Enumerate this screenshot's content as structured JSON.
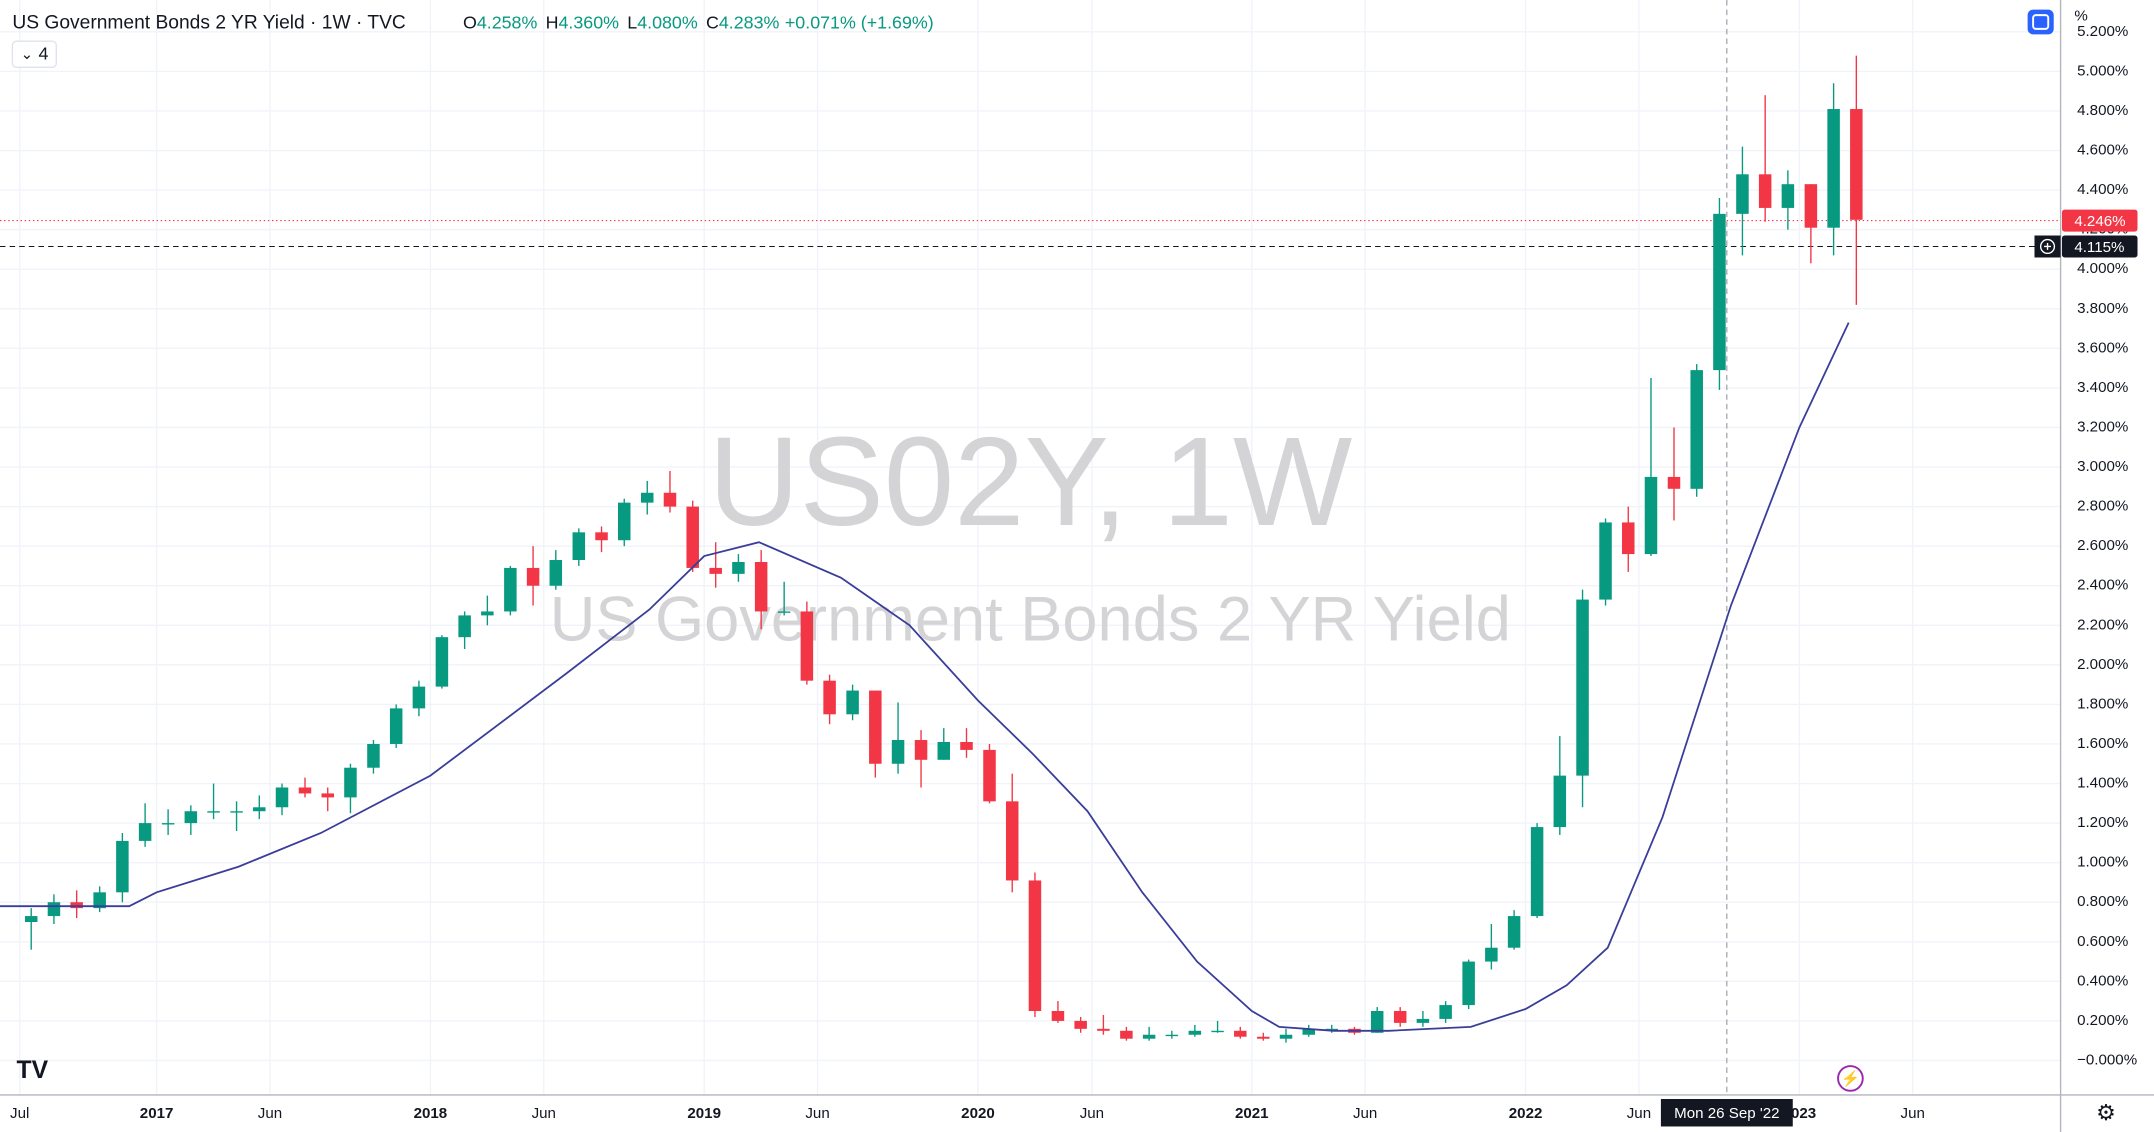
{
  "chart_data": {
    "type": "candlestick",
    "title": "US Government Bonds 2 YR Yield · 1W · TVC",
    "ohlc": [
      {
        "key": "O",
        "value": "4.258%"
      },
      {
        "key": "H",
        "value": "4.360%"
      },
      {
        "key": "L",
        "value": "4.080%"
      },
      {
        "key": "C",
        "value": "4.283%"
      }
    ],
    "change": "+0.071% (+1.69%)",
    "indicator_label": "4",
    "unit": "%",
    "watermark": "US02Y, 1W",
    "watermark_subtitle": "US Government Bonds 2 YR Yield",
    "up_color": "#089981",
    "down_color": "#f23645",
    "ma_color": "#3a3d99",
    "xlim": [
      2016.428,
      2023.954
    ],
    "ylim": [
      -0.174,
      5.361
    ],
    "xticks": [
      {
        "value": 2016.5,
        "label": "Jul"
      },
      2017,
      {
        "value": 2017.414,
        "label": "Jun"
      },
      2018,
      {
        "value": 2018.414,
        "label": "Jun"
      },
      2019,
      {
        "value": 2019.414,
        "label": "Jun"
      },
      2020,
      {
        "value": 2020.416,
        "label": "Jun"
      },
      2021,
      {
        "value": 2021.414,
        "label": "Jun"
      },
      2022,
      {
        "value": 2022.414,
        "label": "Jun"
      },
      2023,
      {
        "value": 2023.414,
        "label": "Jun"
      }
    ],
    "yticks": [
      {
        "value": 0,
        "label": "−0.000%"
      },
      {
        "value": 0.2,
        "label": "0.200%"
      },
      {
        "value": 0.4,
        "label": "0.400%"
      },
      {
        "value": 0.6,
        "label": "0.600%"
      },
      {
        "value": 0.8,
        "label": "0.800%"
      },
      {
        "value": 1.0,
        "label": "1.000%"
      },
      {
        "value": 1.2,
        "label": "1.200%"
      },
      {
        "value": 1.4,
        "label": "1.400%"
      },
      {
        "value": 1.6,
        "label": "1.600%"
      },
      {
        "value": 1.8,
        "label": "1.800%"
      },
      {
        "value": 2.0,
        "label": "2.000%"
      },
      {
        "value": 2.2,
        "label": "2.200%"
      },
      {
        "value": 2.4,
        "label": "2.400%"
      },
      {
        "value": 2.6,
        "label": "2.600%"
      },
      {
        "value": 2.8,
        "label": "2.800%"
      },
      {
        "value": 3.0,
        "label": "3.000%"
      },
      {
        "value": 3.2,
        "label": "3.200%"
      },
      {
        "value": 3.4,
        "label": "3.400%"
      },
      {
        "value": 3.6,
        "label": "3.600%"
      },
      {
        "value": 3.8,
        "label": "3.800%"
      },
      {
        "value": 4.0,
        "label": "4.000%"
      },
      {
        "value": 4.2,
        "label": "4.200%"
      },
      {
        "value": 4.4,
        "label": "4.400%"
      },
      {
        "value": 4.6,
        "label": "4.600%"
      },
      {
        "value": 4.8,
        "label": "4.800%"
      },
      {
        "value": 5.0,
        "label": "5.000%"
      },
      {
        "value": 5.2,
        "label": "5.200%"
      }
    ],
    "grid": true,
    "x": [
      2016.542,
      2016.625,
      2016.708,
      2016.792,
      2016.875,
      2016.958,
      2017.042,
      2017.125,
      2017.208,
      2017.292,
      2017.375,
      2017.458,
      2017.542,
      2017.625,
      2017.708,
      2017.792,
      2017.875,
      2017.958,
      2018.042,
      2018.125,
      2018.208,
      2018.292,
      2018.375,
      2018.458,
      2018.542,
      2018.625,
      2018.708,
      2018.792,
      2018.875,
      2018.958,
      2019.042,
      2019.125,
      2019.208,
      2019.292,
      2019.375,
      2019.458,
      2019.542,
      2019.625,
      2019.708,
      2019.792,
      2019.875,
      2019.958,
      2020.042,
      2020.125,
      2020.208,
      2020.292,
      2020.375,
      2020.458,
      2020.542,
      2020.625,
      2020.708,
      2020.792,
      2020.875,
      2020.958,
      2021.042,
      2021.125,
      2021.208,
      2021.292,
      2021.375,
      2021.458,
      2021.542,
      2021.625,
      2021.708,
      2021.792,
      2021.875,
      2021.958,
      2022.042,
      2022.125,
      2022.208,
      2022.292,
      2022.375,
      2022.458,
      2022.542,
      2022.625,
      2022.708,
      2022.792,
      2022.875,
      2022.958,
      2023.042,
      2023.125,
      2023.208
    ],
    "open": [
      0.7,
      0.73,
      0.8,
      0.77,
      0.85,
      1.11,
      1.2,
      1.2,
      1.26,
      1.26,
      1.26,
      1.28,
      1.38,
      1.35,
      1.33,
      1.48,
      1.6,
      1.78,
      1.89,
      2.14,
      2.25,
      2.27,
      2.49,
      2.4,
      2.53,
      2.67,
      2.63,
      2.82,
      2.87,
      2.8,
      2.49,
      2.46,
      2.52,
      2.27,
      2.27,
      1.92,
      1.75,
      1.87,
      1.5,
      1.62,
      1.52,
      1.61,
      1.57,
      1.31,
      0.91,
      0.25,
      0.2,
      0.16,
      0.15,
      0.11,
      0.13,
      0.13,
      0.15,
      0.15,
      0.12,
      0.11,
      0.13,
      0.16,
      0.16,
      0.14,
      0.25,
      0.19,
      0.21,
      0.28,
      0.5,
      0.57,
      0.73,
      1.18,
      1.44,
      2.33,
      2.72,
      2.56,
      2.95,
      2.89,
      3.49,
      4.28,
      4.48,
      4.31,
      4.43,
      4.21,
      4.81
    ],
    "high": [
      0.77,
      0.84,
      0.86,
      0.88,
      1.15,
      1.3,
      1.27,
      1.29,
      1.4,
      1.31,
      1.34,
      1.4,
      1.43,
      1.38,
      1.5,
      1.62,
      1.8,
      1.92,
      2.15,
      2.27,
      2.35,
      2.5,
      2.6,
      2.58,
      2.69,
      2.7,
      2.84,
      2.93,
      2.98,
      2.83,
      2.62,
      2.56,
      2.58,
      2.42,
      2.32,
      1.95,
      1.9,
      1.87,
      1.81,
      1.67,
      1.68,
      1.68,
      1.6,
      1.45,
      0.95,
      0.3,
      0.22,
      0.23,
      0.17,
      0.17,
      0.15,
      0.18,
      0.2,
      0.17,
      0.14,
      0.16,
      0.18,
      0.18,
      0.17,
      0.27,
      0.27,
      0.25,
      0.3,
      0.51,
      0.69,
      0.76,
      1.2,
      1.64,
      2.38,
      2.74,
      2.8,
      3.45,
      3.2,
      3.52,
      4.36,
      4.62,
      4.88,
      4.5,
      4.43,
      4.94,
      5.08
    ],
    "low": [
      0.56,
      0.69,
      0.72,
      0.75,
      0.8,
      1.08,
      1.14,
      1.14,
      1.22,
      1.16,
      1.22,
      1.24,
      1.33,
      1.26,
      1.25,
      1.45,
      1.58,
      1.74,
      1.88,
      2.08,
      2.2,
      2.25,
      2.3,
      2.38,
      2.5,
      2.57,
      2.6,
      2.76,
      2.77,
      2.47,
      2.39,
      2.42,
      2.18,
      2.25,
      1.9,
      1.7,
      1.72,
      1.43,
      1.45,
      1.38,
      1.52,
      1.53,
      1.3,
      0.85,
      0.22,
      0.19,
      0.14,
      0.13,
      0.1,
      0.1,
      0.11,
      0.12,
      0.14,
      0.11,
      0.1,
      0.09,
      0.12,
      0.14,
      0.13,
      0.14,
      0.17,
      0.17,
      0.19,
      0.26,
      0.46,
      0.56,
      0.72,
      1.14,
      1.28,
      2.3,
      2.47,
      2.55,
      2.73,
      2.85,
      3.39,
      4.07,
      4.24,
      4.2,
      4.03,
      4.07,
      3.82
    ],
    "close": [
      0.73,
      0.8,
      0.77,
      0.85,
      1.11,
      1.2,
      1.2,
      1.26,
      1.26,
      1.26,
      1.28,
      1.38,
      1.35,
      1.33,
      1.48,
      1.6,
      1.78,
      1.89,
      2.14,
      2.25,
      2.27,
      2.49,
      2.4,
      2.53,
      2.67,
      2.63,
      2.82,
      2.87,
      2.8,
      2.49,
      2.46,
      2.52,
      2.27,
      2.27,
      1.92,
      1.75,
      1.87,
      1.5,
      1.62,
      1.52,
      1.61,
      1.57,
      1.31,
      0.91,
      0.25,
      0.2,
      0.16,
      0.15,
      0.11,
      0.13,
      0.13,
      0.15,
      0.15,
      0.12,
      0.11,
      0.13,
      0.16,
      0.16,
      0.14,
      0.25,
      0.19,
      0.21,
      0.28,
      0.5,
      0.57,
      0.73,
      1.18,
      1.44,
      2.33,
      2.72,
      2.56,
      2.95,
      2.89,
      3.49,
      4.28,
      4.48,
      4.31,
      4.43,
      4.21,
      4.81,
      4.25
    ],
    "moving_average": {
      "x": [
        2016.428,
        2016.9,
        2017.0,
        2017.3,
        2017.6,
        2018.0,
        2018.5,
        2018.8,
        2019.0,
        2019.2,
        2019.5,
        2019.75,
        2020.0,
        2020.2,
        2020.4,
        2020.6,
        2020.8,
        2021.0,
        2021.1,
        2021.3,
        2021.5,
        2021.8,
        2022.0,
        2022.15,
        2022.3,
        2022.5,
        2022.75,
        2023.0,
        2023.18
      ],
      "values": [
        0.78,
        0.78,
        0.85,
        0.98,
        1.15,
        1.44,
        1.96,
        2.28,
        2.55,
        2.62,
        2.44,
        2.2,
        1.82,
        1.55,
        1.26,
        0.85,
        0.5,
        0.25,
        0.17,
        0.15,
        0.15,
        0.17,
        0.26,
        0.38,
        0.57,
        1.23,
        2.3,
        3.2,
        3.73
      ]
    },
    "price_labels": [
      {
        "value": 4.246,
        "label": "4.246%",
        "color": "#f23645"
      },
      {
        "value": 4.115,
        "label": "4.115%",
        "color": "#131722"
      }
    ],
    "crosshair": {
      "x": 2022.735,
      "label": "Mon 26 Sep '22"
    }
  }
}
